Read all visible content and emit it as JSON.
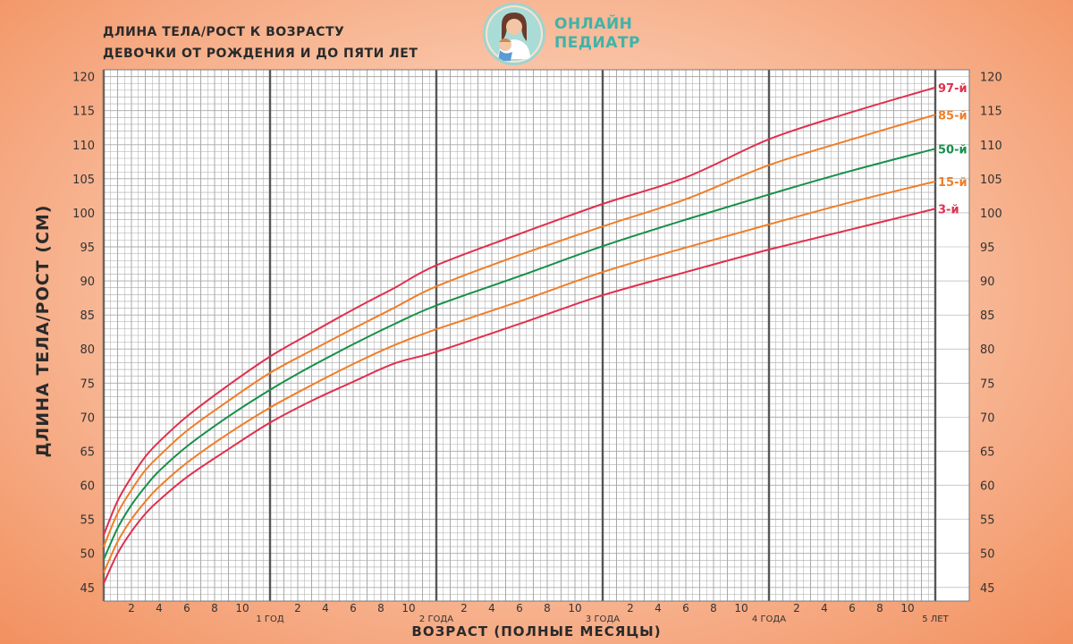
{
  "header": {
    "title_line1": "ДЛИНА ТЕЛА/РОСТ К ВОЗРАСТУ",
    "title_line2": "ДЕВОЧКИ ОТ РОЖДЕНИЯ И ДО ПЯТИ ЛЕТ"
  },
  "logo": {
    "line1": "ОНЛАЙН",
    "line2": "ПЕДИАТР"
  },
  "colors": {
    "p97": "#e0304e",
    "p85": "#f07e28",
    "p50": "#17904a",
    "p15": "#f07e28",
    "p3": "#e0304e",
    "grid_minor": "#a9a9a9",
    "grid_major": "#555555",
    "logo_teal": "#3fb3a8"
  },
  "chart_data": {
    "type": "line",
    "title": "ДЛИНА ТЕЛА/РОСТ К ВОЗРАСТУ — ДЕВОЧКИ ОТ РОЖДЕНИЯ И ДО ПЯТИ ЛЕТ",
    "xlabel": "ВОЗРАСТ (ПОЛНЫЕ МЕСЯЦЫ)",
    "ylabel": "ДЛИНА ТЕЛА/РОСТ (СМ)",
    "xlim": [
      0,
      60
    ],
    "ylim": [
      43,
      121
    ],
    "grid": true,
    "y_ticks": [
      45,
      50,
      55,
      60,
      65,
      70,
      75,
      80,
      85,
      90,
      95,
      100,
      105,
      110,
      115,
      120
    ],
    "x_month_ticks": [
      "2",
      "4",
      "6",
      "8",
      "10"
    ],
    "x_year_labels": [
      {
        "month": 12,
        "label": "1 ГОД"
      },
      {
        "month": 24,
        "label": "2 ГОДА"
      },
      {
        "month": 36,
        "label": "3 ГОДА"
      },
      {
        "month": 48,
        "label": "4 ГОДА"
      },
      {
        "month": 60,
        "label": "5 ЛЕТ"
      }
    ],
    "x": [
      0,
      1,
      2,
      3,
      4,
      6,
      9,
      12,
      15,
      18,
      21,
      24,
      30,
      36,
      42,
      48,
      54,
      60
    ],
    "series": [
      {
        "name": "97-й",
        "label": "97-й",
        "color_key": "p97",
        "values": [
          52.7,
          57.7,
          61.2,
          64.2,
          66.4,
          70.1,
          74.7,
          78.9,
          82.4,
          85.8,
          89.0,
          92.3,
          96.9,
          101.3,
          105.2,
          110.8,
          114.8,
          118.4
        ]
      },
      {
        "name": "85-й",
        "label": "85-й",
        "color_key": "p85",
        "values": [
          51.0,
          55.9,
          59.3,
          62.2,
          64.3,
          68.0,
          72.4,
          76.5,
          79.8,
          83.0,
          86.1,
          89.2,
          93.8,
          98.0,
          102.0,
          107.0,
          110.8,
          114.4
        ]
      },
      {
        "name": "50-й",
        "label": "50-й",
        "color_key": "p50",
        "values": [
          49.1,
          53.7,
          57.1,
          59.8,
          62.1,
          65.7,
          70.1,
          74.0,
          77.5,
          80.7,
          83.7,
          86.4,
          90.7,
          95.1,
          99.0,
          102.7,
          106.2,
          109.4
        ]
      },
      {
        "name": "15-й",
        "label": "15-й",
        "color_key": "p15",
        "values": [
          47.2,
          51.7,
          55.0,
          57.6,
          59.8,
          63.3,
          67.6,
          71.4,
          74.7,
          77.8,
          80.6,
          82.9,
          87.0,
          91.3,
          94.9,
          98.3,
          101.6,
          104.6
        ]
      },
      {
        "name": "3-й",
        "label": "3-й",
        "color_key": "p3",
        "values": [
          45.6,
          50.0,
          53.2,
          55.8,
          57.8,
          61.2,
          65.3,
          69.2,
          72.4,
          75.2,
          77.9,
          79.6,
          83.7,
          87.9,
          91.3,
          94.6,
          97.6,
          100.6
        ]
      }
    ]
  }
}
